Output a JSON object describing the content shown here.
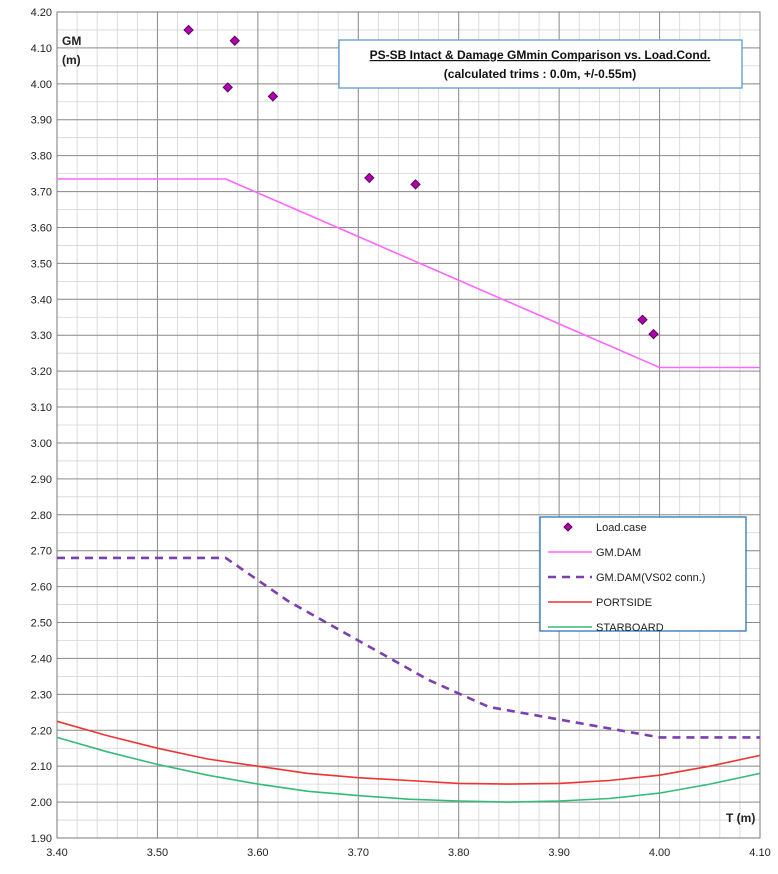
{
  "chart_data": {
    "type": "line",
    "title": "PS-SB Intact & Damage GMmin Comparison vs. Load.Cond.",
    "subtitle": "(calculated trims : 0.0m, +/-0.55m)",
    "ylabel_line1": "GM",
    "ylabel_line2": "(m)",
    "xlabel": "T (m)",
    "xlim": [
      3.4,
      4.1
    ],
    "ylim": [
      1.9,
      4.2
    ],
    "x_ticks": [
      "3.40",
      "3.50",
      "3.60",
      "3.70",
      "3.80",
      "3.90",
      "4.00",
      "4.10"
    ],
    "y_ticks": [
      "1.90",
      "2.00",
      "2.10",
      "2.20",
      "2.30",
      "2.40",
      "2.50",
      "2.60",
      "2.70",
      "2.80",
      "2.90",
      "3.00",
      "3.10",
      "3.20",
      "3.30",
      "3.40",
      "3.50",
      "3.60",
      "3.70",
      "3.80",
      "3.90",
      "4.00",
      "4.10",
      "4.20"
    ],
    "grid": true,
    "legend_position": "right",
    "series": [
      {
        "name": "Load.case",
        "kind": "scatter",
        "color": "#b000b0",
        "stroke": "#5a005a",
        "points": [
          {
            "x": 3.531,
            "y": 4.15
          },
          {
            "x": 3.577,
            "y": 4.12
          },
          {
            "x": 3.57,
            "y": 3.99
          },
          {
            "x": 3.615,
            "y": 3.965
          },
          {
            "x": 3.711,
            "y": 3.738
          },
          {
            "x": 3.757,
            "y": 3.72
          },
          {
            "x": 3.983,
            "y": 3.343
          },
          {
            "x": 3.994,
            "y": 3.303
          }
        ]
      },
      {
        "name": "GM.DAM",
        "kind": "line",
        "color": "#ff66ff",
        "dash": "",
        "points": [
          {
            "x": 3.4,
            "y": 3.735
          },
          {
            "x": 3.568,
            "y": 3.735
          },
          {
            "x": 4.0,
            "y": 3.21
          },
          {
            "x": 4.1,
            "y": 3.21
          }
        ]
      },
      {
        "name": "GM.DAM(VS02 conn.)",
        "kind": "line",
        "color": "#7a3fb0",
        "dash": "8,6",
        "points": [
          {
            "x": 3.4,
            "y": 2.68
          },
          {
            "x": 3.568,
            "y": 2.68
          },
          {
            "x": 3.63,
            "y": 2.56
          },
          {
            "x": 3.7,
            "y": 2.45
          },
          {
            "x": 3.77,
            "y": 2.34
          },
          {
            "x": 3.83,
            "y": 2.265
          },
          {
            "x": 3.9,
            "y": 2.23
          },
          {
            "x": 4.0,
            "y": 2.18
          },
          {
            "x": 4.1,
            "y": 2.18
          }
        ]
      },
      {
        "name": "PORTSIDE",
        "kind": "line",
        "color": "#ee3333",
        "dash": "",
        "points": [
          {
            "x": 3.4,
            "y": 2.225
          },
          {
            "x": 3.45,
            "y": 2.185
          },
          {
            "x": 3.5,
            "y": 2.15
          },
          {
            "x": 3.55,
            "y": 2.12
          },
          {
            "x": 3.6,
            "y": 2.1
          },
          {
            "x": 3.65,
            "y": 2.08
          },
          {
            "x": 3.7,
            "y": 2.068
          },
          {
            "x": 3.75,
            "y": 2.06
          },
          {
            "x": 3.8,
            "y": 2.052
          },
          {
            "x": 3.85,
            "y": 2.05
          },
          {
            "x": 3.9,
            "y": 2.052
          },
          {
            "x": 3.95,
            "y": 2.06
          },
          {
            "x": 4.0,
            "y": 2.075
          },
          {
            "x": 4.05,
            "y": 2.1
          },
          {
            "x": 4.1,
            "y": 2.13
          }
        ]
      },
      {
        "name": "STARBOARD",
        "kind": "line",
        "color": "#33bb77",
        "dash": "",
        "points": [
          {
            "x": 3.4,
            "y": 2.18
          },
          {
            "x": 3.45,
            "y": 2.14
          },
          {
            "x": 3.5,
            "y": 2.105
          },
          {
            "x": 3.55,
            "y": 2.075
          },
          {
            "x": 3.6,
            "y": 2.05
          },
          {
            "x": 3.65,
            "y": 2.03
          },
          {
            "x": 3.7,
            "y": 2.018
          },
          {
            "x": 3.75,
            "y": 2.008
          },
          {
            "x": 3.8,
            "y": 2.003
          },
          {
            "x": 3.85,
            "y": 2.0
          },
          {
            "x": 3.9,
            "y": 2.003
          },
          {
            "x": 3.95,
            "y": 2.01
          },
          {
            "x": 4.0,
            "y": 2.025
          },
          {
            "x": 4.05,
            "y": 2.05
          },
          {
            "x": 4.1,
            "y": 2.08
          }
        ]
      }
    ]
  }
}
